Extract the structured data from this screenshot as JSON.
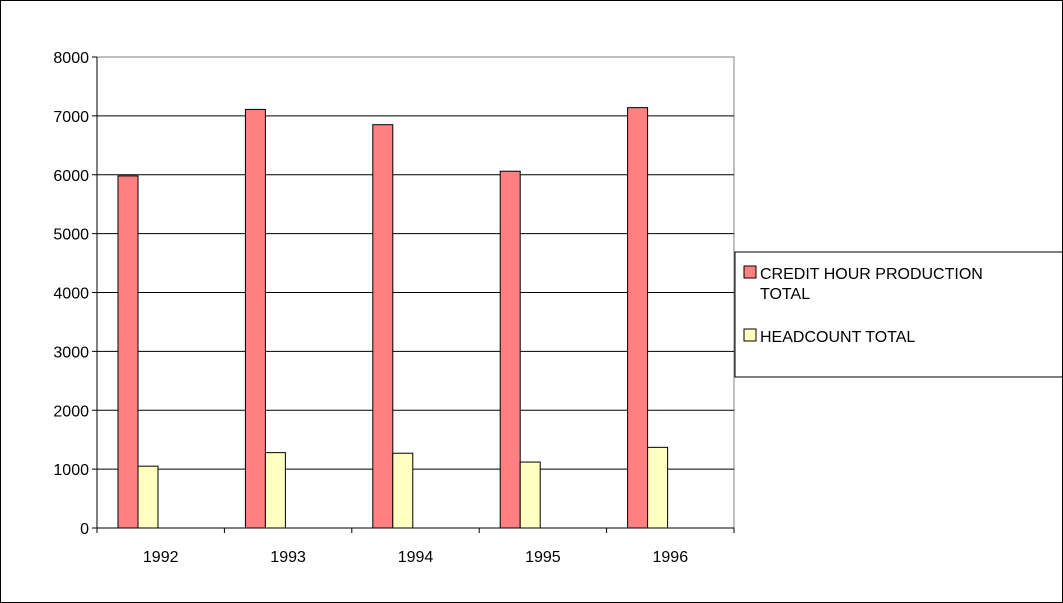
{
  "chart_data": {
    "type": "bar",
    "title": "",
    "xlabel": "",
    "ylabel": "",
    "categories": [
      "1992",
      "1993",
      "1994",
      "1995",
      "1996"
    ],
    "ylim": [
      0,
      8000
    ],
    "yticks": [
      0,
      1000,
      2000,
      3000,
      4000,
      5000,
      6000,
      7000,
      8000
    ],
    "grid": true,
    "legend_position": "right",
    "series": [
      {
        "name_lines": [
          "CREDIT HOUR PRODUCTION",
          "TOTAL"
        ],
        "values": [
          5980,
          7110,
          6850,
          6060,
          7140
        ],
        "color": "#ff8080"
      },
      {
        "name_lines": [
          "HEADCOUNT TOTAL"
        ],
        "values": [
          1050,
          1280,
          1270,
          1120,
          1370
        ],
        "color": "#ffffc0"
      }
    ]
  }
}
